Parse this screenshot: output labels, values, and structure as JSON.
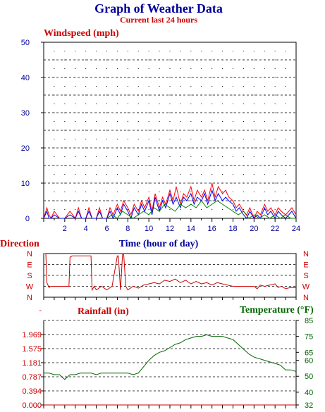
{
  "title": "Graph of Weather Data",
  "subtitle": "Current last 24 hours",
  "colors": {
    "red": "#cc0000",
    "blue": "#000099",
    "green": "#006600",
    "bright_red": "#ff0000",
    "bright_blue": "#0000ff",
    "bright_green": "#008000"
  },
  "chart_data": [
    {
      "type": "line",
      "title": "Windspeed (mph)",
      "xlabel": "Time (hour of day)",
      "ylabel": "",
      "xlim": [
        0,
        24
      ],
      "ylim": [
        0,
        50
      ],
      "x_ticks": [
        2,
        4,
        6,
        8,
        10,
        12,
        14,
        16,
        18,
        20,
        22,
        24
      ],
      "y_ticks": [
        0,
        10,
        20,
        30,
        40,
        50
      ],
      "grid": true,
      "series": [
        {
          "color": "#ff0000",
          "x": [
            0,
            0.3,
            0.5,
            0.7,
            1,
            1.5,
            2,
            2.5,
            3,
            3.3,
            3.6,
            4,
            4.3,
            4.6,
            5,
            5.3,
            5.6,
            6,
            6.3,
            6.6,
            7,
            7.3,
            7.6,
            8,
            8.3,
            8.6,
            9,
            9.3,
            9.6,
            10,
            10.3,
            10.6,
            11,
            11.3,
            11.6,
            12,
            12.3,
            12.6,
            13,
            13.3,
            13.6,
            14,
            14.3,
            14.6,
            15,
            15.3,
            15.6,
            16,
            16.3,
            16.6,
            17,
            17.3,
            17.6,
            18,
            18.3,
            18.6,
            19,
            19.3,
            19.6,
            20,
            20.3,
            20.6,
            21,
            21.3,
            21.6,
            22,
            22.3,
            22.6,
            23,
            23.3,
            23.6,
            24
          ],
          "y": [
            0,
            3,
            1,
            0,
            2,
            0,
            0,
            2,
            0,
            3,
            0,
            0,
            3,
            0,
            0,
            3,
            0,
            0,
            3,
            1,
            4,
            2,
            5,
            3,
            1,
            4,
            2,
            5,
            3,
            6,
            2,
            7,
            3,
            6,
            4,
            8,
            5,
            9,
            4,
            7,
            6,
            9,
            5,
            8,
            6,
            8,
            5,
            10,
            6,
            9,
            7,
            8,
            6,
            5,
            3,
            4,
            2,
            1,
            3,
            0,
            2,
            1,
            4,
            2,
            3,
            1,
            3,
            2,
            1,
            2,
            3,
            1
          ]
        },
        {
          "color": "#0000ff",
          "x": [
            0,
            0.3,
            0.5,
            0.7,
            1,
            1.5,
            2,
            2.5,
            3,
            3.3,
            3.6,
            4,
            4.3,
            4.6,
            5,
            5.3,
            5.6,
            6,
            6.3,
            6.6,
            7,
            7.3,
            7.6,
            8,
            8.3,
            8.6,
            9,
            9.3,
            9.6,
            10,
            10.3,
            10.6,
            11,
            11.3,
            11.6,
            12,
            12.3,
            12.6,
            13,
            13.3,
            13.6,
            14,
            14.3,
            14.6,
            15,
            15.3,
            15.6,
            16,
            16.3,
            16.6,
            17,
            17.3,
            17.6,
            18,
            18.3,
            18.6,
            19,
            19.3,
            19.6,
            20,
            20.3,
            20.6,
            21,
            21.3,
            21.6,
            22,
            22.3,
            22.6,
            23,
            23.3,
            23.6,
            24
          ],
          "y": [
            0,
            2,
            0,
            0,
            1,
            0,
            0,
            1,
            0,
            2,
            0,
            0,
            2,
            0,
            0,
            2,
            0,
            0,
            2,
            0,
            3,
            1,
            4,
            2,
            0,
            3,
            1,
            4,
            2,
            5,
            1,
            6,
            2,
            5,
            3,
            7,
            4,
            6,
            3,
            6,
            5,
            7,
            4,
            6,
            5,
            7,
            4,
            8,
            5,
            7,
            5,
            6,
            5,
            4,
            2,
            3,
            1,
            0,
            2,
            0,
            1,
            0,
            3,
            1,
            2,
            0,
            2,
            1,
            0,
            1,
            2,
            0
          ]
        },
        {
          "color": "#008000",
          "x": [
            6,
            6.5,
            7,
            7.5,
            8,
            8.5,
            9,
            9.5,
            10,
            10.5,
            11,
            11.5,
            12,
            12.5,
            13,
            13.5,
            14,
            14.5,
            15,
            15.5,
            16,
            16.5,
            17,
            17.5,
            18,
            18.5,
            19,
            19.5,
            20,
            20.5,
            21,
            21.5,
            22,
            22.5,
            23,
            23.5,
            24
          ],
          "y": [
            0,
            1,
            0,
            2,
            1,
            0,
            1,
            2,
            1,
            3,
            2,
            4,
            3,
            2,
            4,
            3,
            4,
            3,
            5,
            3,
            4,
            5,
            4,
            3,
            2,
            1,
            2,
            0,
            1,
            0,
            1,
            0,
            1,
            0,
            1,
            0,
            0
          ]
        }
      ]
    },
    {
      "type": "line",
      "title": "Direction",
      "ylabel": "Direction",
      "xlim": [
        0,
        24
      ],
      "y_ticks": [
        "N",
        "W",
        "S",
        "E",
        "N"
      ],
      "series": [
        {
          "color": "#cc0000",
          "x": [
            0,
            0.2,
            0.3,
            0.5,
            0.7,
            1,
            1.5,
            2,
            2.4,
            2.5,
            2.7,
            3,
            3.5,
            4,
            4.3,
            4.5,
            4.6,
            4.8,
            5,
            5.5,
            6,
            6.5,
            7,
            7.1,
            7.3,
            7.5,
            7.6,
            7.8,
            8,
            8.5,
            9,
            9.5,
            10,
            10.5,
            11,
            11.5,
            12,
            12.5,
            13,
            13.5,
            14,
            14.5,
            15,
            15.5,
            16,
            16.5,
            17,
            17.5,
            18,
            18.5,
            19,
            19.5,
            20,
            20.3,
            20.6,
            21,
            21.5,
            22,
            22.3,
            22.6,
            23,
            23.5,
            24
          ],
          "y": [
            360,
            360,
            120,
            80,
            90,
            90,
            90,
            90,
            90,
            330,
            340,
            340,
            340,
            340,
            340,
            340,
            60,
            90,
            60,
            90,
            60,
            90,
            340,
            340,
            60,
            360,
            360,
            90,
            60,
            90,
            75,
            100,
            110,
            120,
            110,
            140,
            130,
            150,
            120,
            140,
            110,
            130,
            110,
            120,
            100,
            120,
            110,
            100,
            90,
            90,
            90,
            90,
            90,
            70,
            100,
            90,
            100,
            110,
            80,
            90,
            70,
            80,
            80
          ]
        }
      ]
    },
    {
      "type": "line",
      "title": "Rainfall (in)",
      "y_ticks": [
        "0.000",
        "0.394",
        "0.787",
        "1.181",
        "1.575",
        "1.969",
        "-"
      ],
      "series": [
        {
          "name": "Rainfall (in)",
          "color": "#cc0000",
          "x": [
            0,
            24
          ],
          "y": [
            0,
            0
          ]
        }
      ]
    },
    {
      "type": "line",
      "title": "Temperature (°F)",
      "y_ticks": [
        32,
        40,
        50,
        60,
        65,
        75,
        85
      ],
      "ylim": [
        32,
        85
      ],
      "series": [
        {
          "name": "Temperature (°F)",
          "color": "#006600",
          "x": [
            0,
            0.5,
            1,
            1.5,
            2,
            2.5,
            3,
            3.5,
            4,
            4.5,
            5,
            5.5,
            6,
            6.5,
            7,
            7.5,
            8,
            8.5,
            9,
            9.5,
            10,
            10.5,
            11,
            11.5,
            12,
            12.5,
            13,
            13.5,
            14,
            14.5,
            15,
            15.5,
            16,
            16.5,
            17,
            17.5,
            18,
            18.5,
            19,
            19.5,
            20,
            20.5,
            21,
            21.5,
            22,
            22.5,
            23,
            23.5,
            24
          ],
          "y": [
            52,
            52,
            51,
            51,
            48,
            51,
            51,
            52,
            52,
            52,
            51,
            52,
            52,
            52,
            52,
            52,
            52,
            51,
            52,
            56,
            60,
            63,
            65,
            66,
            68,
            70,
            71,
            73,
            74,
            75,
            75,
            76,
            75,
            75,
            75,
            74,
            73,
            70,
            67,
            64,
            62,
            61,
            60,
            59,
            58,
            57,
            54,
            54,
            53
          ]
        }
      ]
    }
  ]
}
